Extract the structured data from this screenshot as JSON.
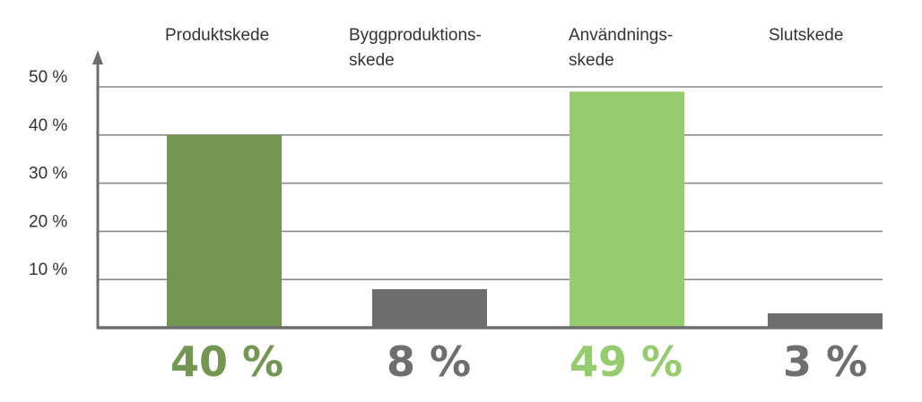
{
  "chart_data": {
    "type": "bar",
    "categories": [
      [
        "Produktskede"
      ],
      [
        "Byggproduktions-",
        "skede"
      ],
      [
        "Användnings-",
        "skede"
      ],
      [
        "Slutskede"
      ]
    ],
    "values": [
      40,
      8,
      49,
      3
    ],
    "data_labels": [
      "40 %",
      "8 %",
      "49 %",
      "3 %"
    ],
    "bar_colors": [
      "#739752",
      "#6e6e6e",
      "#96cb6e",
      "#6e6e6e"
    ],
    "label_colors": [
      "#739752",
      "#6e6e6e",
      "#96cb6e",
      "#6e6e6e"
    ],
    "y_ticks": [
      10,
      20,
      30,
      40,
      50
    ],
    "y_tick_labels": [
      "10 %",
      "20 %",
      "30 %",
      "40 %",
      "50 %"
    ],
    "ylim": [
      0,
      50
    ],
    "title": "",
    "xlabel": "",
    "ylabel": "",
    "grid": true,
    "category_label_position": "top",
    "grid_color": "#8a8a8a",
    "axis_color": "#6e6e6e"
  }
}
